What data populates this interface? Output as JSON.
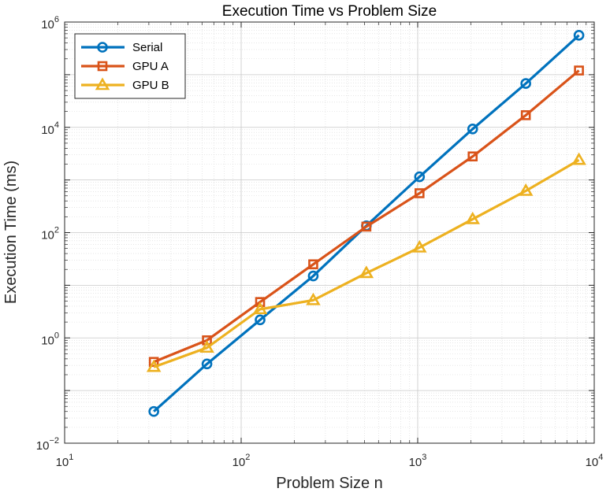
{
  "chart_data": {
    "type": "line",
    "title": "Execution Time vs Problem Size",
    "xlabel": "Problem Size n",
    "ylabel": "Execution Time (ms)",
    "xscale": "log",
    "yscale": "log",
    "xlim": [
      10,
      10000
    ],
    "ylim": [
      0.01,
      1000000
    ],
    "x_ticks": [
      {
        "base": "10",
        "exp": "1",
        "value": 10
      },
      {
        "base": "10",
        "exp": "2",
        "value": 100
      },
      {
        "base": "10",
        "exp": "3",
        "value": 1000
      },
      {
        "base": "10",
        "exp": "4",
        "value": 10000
      }
    ],
    "y_ticks": [
      {
        "base": "10",
        "exp": "−2",
        "value": 0.01
      },
      {
        "base": "10",
        "exp": "0",
        "value": 1
      },
      {
        "base": "10",
        "exp": "2",
        "value": 100
      },
      {
        "base": "10",
        "exp": "4",
        "value": 10000
      },
      {
        "base": "10",
        "exp": "6",
        "value": 1000000
      }
    ],
    "grid": true,
    "minor_grid": true,
    "legend_position": "top-left",
    "x": [
      32,
      64,
      128,
      256,
      512,
      1024,
      2048,
      4096,
      8192
    ],
    "series": [
      {
        "name": "Serial",
        "color": "#0072BD",
        "marker": "circle",
        "values": [
          0.04,
          0.32,
          2.2,
          15,
          135,
          1150,
          9300,
          68000,
          560000
        ]
      },
      {
        "name": "GPU A",
        "color": "#D95319",
        "marker": "square",
        "values": [
          0.35,
          0.9,
          4.8,
          25,
          130,
          560,
          2800,
          17000,
          120000
        ]
      },
      {
        "name": "GPU B",
        "color": "#EDB120",
        "marker": "triangle",
        "values": [
          0.28,
          0.65,
          3.5,
          5.2,
          17,
          52,
          180,
          620,
          2400
        ]
      }
    ]
  }
}
